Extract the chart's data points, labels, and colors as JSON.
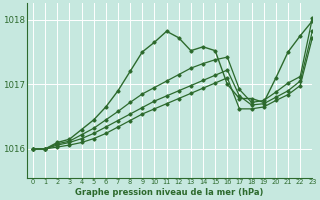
{
  "bg_color": "#c6e8df",
  "grid_color": "#ffffff",
  "line_color": "#2d6a2d",
  "title": "Graphe pression niveau de la mer (hPa)",
  "xlim": [
    -0.5,
    23
  ],
  "ylim": [
    1015.55,
    1018.25
  ],
  "yticks": [
    1016,
    1017,
    1018
  ],
  "xticks": [
    0,
    1,
    2,
    3,
    4,
    5,
    6,
    7,
    8,
    9,
    10,
    11,
    12,
    13,
    14,
    15,
    16,
    17,
    18,
    19,
    20,
    21,
    22,
    23
  ],
  "series": [
    {
      "y": [
        1016.0,
        1016.0,
        1016.1,
        1016.15,
        1016.3,
        1016.45,
        1016.65,
        1016.9,
        1017.2,
        1017.5,
        1017.65,
        1017.82,
        1017.72,
        1017.52,
        1017.58,
        1017.52,
        1017.0,
        1016.78,
        1016.78,
        1016.72,
        1017.1,
        1017.5,
        1017.75,
        1017.98
      ],
      "lw": 1.0
    },
    {
      "y": [
        1016.0,
        1016.0,
        1016.08,
        1016.12,
        1016.22,
        1016.32,
        1016.45,
        1016.58,
        1016.72,
        1016.85,
        1016.95,
        1017.05,
        1017.15,
        1017.25,
        1017.32,
        1017.38,
        1017.42,
        1016.92,
        1016.72,
        1016.75,
        1016.88,
        1017.02,
        1017.12,
        1018.02
      ],
      "lw": 0.9
    },
    {
      "y": [
        1016.0,
        1016.0,
        1016.06,
        1016.1,
        1016.16,
        1016.24,
        1016.34,
        1016.44,
        1016.54,
        1016.64,
        1016.74,
        1016.82,
        1016.9,
        1016.98,
        1017.06,
        1017.14,
        1017.22,
        1016.82,
        1016.68,
        1016.7,
        1016.8,
        1016.9,
        1017.05,
        1017.82
      ],
      "lw": 0.9
    },
    {
      "y": [
        1016.0,
        1016.0,
        1016.03,
        1016.06,
        1016.1,
        1016.16,
        1016.24,
        1016.34,
        1016.44,
        1016.54,
        1016.62,
        1016.7,
        1016.78,
        1016.86,
        1016.94,
        1017.02,
        1017.1,
        1016.62,
        1016.62,
        1016.65,
        1016.75,
        1016.84,
        1016.98,
        1017.72
      ],
      "lw": 0.9
    }
  ]
}
